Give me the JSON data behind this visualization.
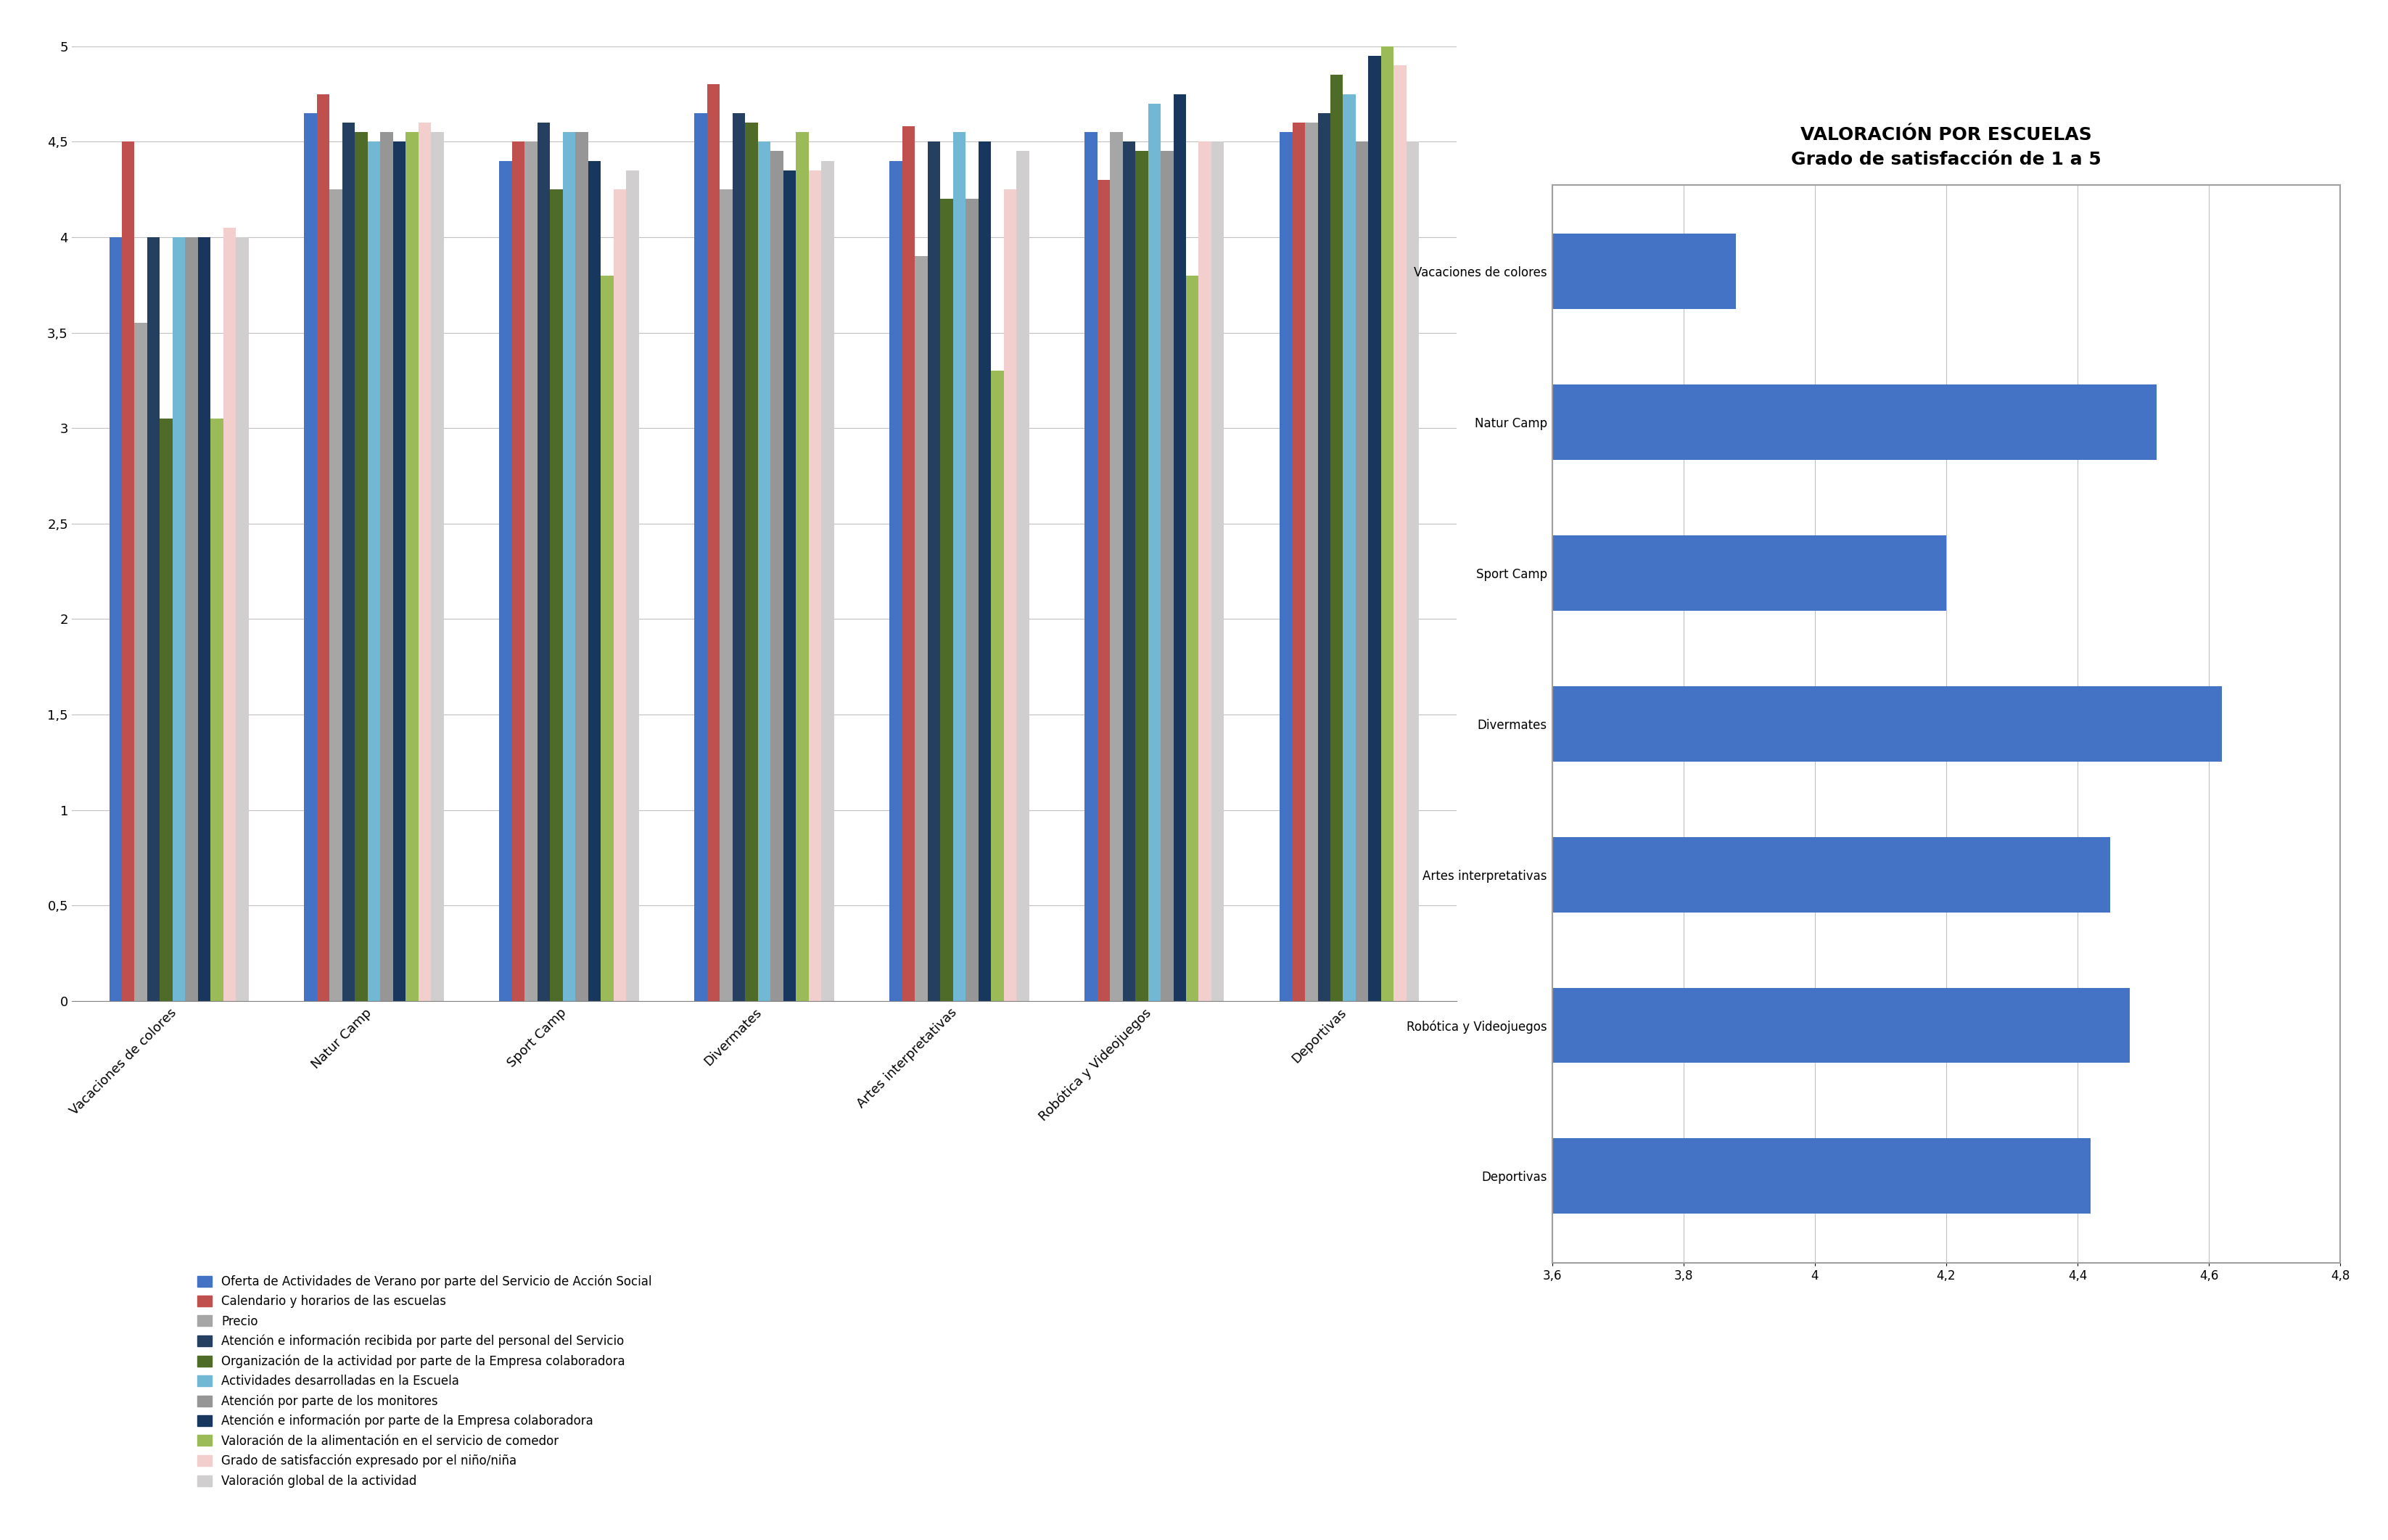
{
  "categories": [
    "Vacaciones de colores",
    "Natur Camp",
    "Sport Camp",
    "Divermates",
    "Artes interpretativas",
    "Robótica y Videojuegos",
    "Deportivas"
  ],
  "series": {
    "Oferta de Actividades de Verano por parte del Servicio de Acción Social": [
      4.0,
      4.65,
      4.4,
      4.65,
      4.4,
      4.55,
      4.55
    ],
    "Calendario y horarios de las escuelas": [
      4.5,
      4.75,
      4.5,
      4.8,
      4.58,
      4.3,
      4.6
    ],
    "Precio": [
      3.55,
      4.25,
      4.5,
      4.25,
      3.9,
      4.55,
      4.6
    ],
    "Atención e información recibida por parte del personal del Servicio": [
      4.0,
      4.6,
      4.6,
      4.65,
      4.5,
      4.5,
      4.65
    ],
    "Organización de la actividad por parte de la Empresa colaboradora": [
      3.05,
      4.55,
      4.25,
      4.6,
      4.2,
      4.45,
      4.85
    ],
    "Actividades desarrolladas en la Escuela": [
      4.0,
      4.5,
      4.55,
      4.5,
      4.55,
      4.7,
      4.75
    ],
    "Atención por parte de los monitores": [
      4.0,
      4.55,
      4.55,
      4.45,
      4.2,
      4.45,
      4.5
    ],
    "Atención e información por parte de la Empresa colaboradora": [
      4.0,
      4.5,
      4.4,
      4.35,
      4.5,
      4.75,
      4.95
    ],
    "Valoración de la alimentación en el servicio de comedor": [
      3.05,
      4.55,
      3.8,
      4.55,
      3.3,
      3.8,
      5.0
    ],
    "Grado de satisfacción expresado por el niño/niña": [
      4.05,
      4.6,
      4.25,
      4.35,
      4.25,
      4.5,
      4.9
    ],
    "Valoración global de la actividad": [
      4.0,
      4.55,
      4.35,
      4.4,
      4.45,
      4.5,
      4.5
    ]
  },
  "colors": [
    "#4472C4",
    "#C0504D",
    "#A6A6A6",
    "#243F60",
    "#4E6B28",
    "#72B8D4",
    "#969696",
    "#17375E",
    "#9BBB59",
    "#F2CECC",
    "#D0CECE"
  ],
  "legend_labels": [
    "Oferta de Actividades de Verano por parte del Servicio de Acción Social",
    "Calendario y horarios de las escuelas",
    "Precio",
    "Atención e información recibida por parte del personal del Servicio",
    "Organización de la actividad por parte de la Empresa colaboradora",
    "Actividades desarrolladas en la Escuela",
    "Atención por parte de los monitores",
    "Atención e información por parte de la Empresa colaboradora",
    "Valoración de la alimentación en el servicio de comedor",
    "Grado de satisfacción expresado por el niño/niña",
    "Valoración global de la actividad"
  ],
  "right_chart": {
    "title1": "VALORACIÓN POR ESCUELAS",
    "title2": "Grado de satisfacción de 1 a 5",
    "categories": [
      "Vacaciones de colores",
      "Natur Camp",
      "Sport Camp",
      "Divermates",
      "Artes interpretativas",
      "Robótica y Videojuegos",
      "Deportivas"
    ],
    "values": [
      3.88,
      4.52,
      4.2,
      4.62,
      4.45,
      4.48,
      4.42
    ],
    "bar_color": "#4472C4",
    "xlim_left": 3.6,
    "xlim_right": 4.8,
    "xticks": [
      3.6,
      3.8,
      4.0,
      4.2,
      4.4,
      4.6,
      4.8
    ]
  }
}
